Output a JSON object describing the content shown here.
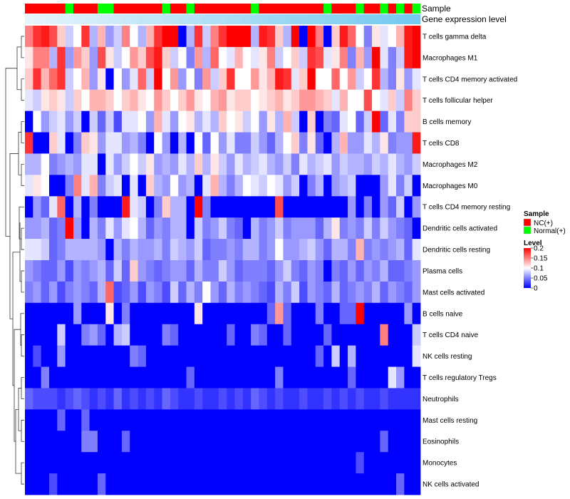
{
  "chart_data": {
    "type": "heatmap",
    "title": "",
    "rows": [
      "T cells gamma delta",
      "Macrophages M1",
      "T cells CD4 memory activated",
      "T cells follicular helper",
      "B cells memory",
      "T cells CD8",
      "Macrophages M2",
      "Macrophages M0",
      "T cells CD4 memory resting",
      "Dendritic cells activated",
      "Dendritic cells resting",
      "Plasma cells",
      "Mast cells activated",
      "B cells naive",
      "T cells CD4 naive",
      "NK cells resting",
      "T cells regulatory  Tregs",
      "Neutrophils",
      "Mast cells resting",
      "Eosinophils",
      "Monocytes",
      "NK cells activated"
    ],
    "column_groups": [
      "NC(+)",
      "NC(+)",
      "NC(+)",
      "NC(+)",
      "NC(+)",
      "Normal(+)",
      "NC(+)",
      "NC(+)",
      "NC(+)",
      "Normal(+)",
      "Normal(+)",
      "NC(+)",
      "NC(+)",
      "NC(+)",
      "NC(+)",
      "NC(+)",
      "NC(+)",
      "Normal(+)",
      "NC(+)",
      "NC(+)",
      "Normal(+)",
      "NC(+)",
      "NC(+)",
      "NC(+)",
      "NC(+)",
      "NC(+)",
      "NC(+)",
      "NC(+)",
      "Normal(+)",
      "NC(+)",
      "NC(+)",
      "NC(+)",
      "NC(+)",
      "NC(+)",
      "NC(+)",
      "NC(+)",
      "NC(+)",
      "Normal(+)",
      "NC(+)",
      "NC(+)",
      "NC(+)",
      "Normal(+)",
      "NC(+)",
      "NC(+)",
      "Normal(+)",
      "NC(+)",
      "Normal(+)",
      "NC(+)",
      "Normal(+)"
    ],
    "values": [
      [
        0.15,
        0.18,
        0.19,
        0.17,
        0.12,
        0.08,
        0.1,
        0.18,
        0.07,
        0.13,
        0.06,
        0.08,
        0.15,
        0.1,
        0.07,
        0.13,
        0.18,
        0.2,
        0.21,
        0.0,
        0.07,
        0.18,
        0.08,
        0.15,
        0.18,
        0.22,
        0.22,
        0.22,
        0.07,
        0.19,
        0.18,
        0.12,
        0.07,
        0.22,
        0.0,
        0.2,
        0.15,
        0.0,
        0.12,
        0.19,
        0.16,
        0.1,
        0.05,
        0.11,
        0.09,
        0.1,
        0.13,
        0.19,
        0.2
      ],
      [
        0.11,
        0.15,
        0.15,
        0.07,
        0.18,
        0.06,
        0.14,
        0.12,
        0.06,
        0.17,
        0.11,
        0.08,
        0.1,
        0.14,
        0.12,
        0.17,
        0.19,
        0.12,
        0.08,
        0.1,
        0.05,
        0.14,
        0.07,
        0.16,
        0.1,
        0.09,
        0.13,
        0.1,
        0.09,
        0.11,
        0.15,
        0.08,
        0.1,
        0.12,
        0.08,
        0.18,
        0.17,
        0.09,
        0.11,
        0.15,
        0.05,
        0.13,
        0.06,
        0.22,
        0.09,
        0.05,
        0.08,
        0.19,
        0.22
      ],
      [
        0.12,
        0.18,
        0.13,
        0.16,
        0.18,
        0.08,
        0.1,
        0.13,
        0.06,
        0.11,
        0.0,
        0.1,
        0.06,
        0.09,
        0.16,
        0.08,
        0.22,
        0.1,
        0.14,
        0.06,
        0.1,
        0.05,
        0.14,
        0.08,
        0.12,
        0.18,
        0.1,
        0.1,
        0.14,
        0.11,
        0.13,
        0.19,
        0.18,
        0.09,
        0.12,
        0.22,
        0.1,
        0.1,
        0.16,
        0.1,
        0.14,
        0.08,
        0.1,
        0.18,
        0.07,
        0.05,
        0.11,
        0.06,
        0.09
      ],
      [
        0.09,
        0.08,
        0.11,
        0.12,
        0.11,
        0.08,
        0.12,
        0.1,
        0.13,
        0.13,
        0.12,
        0.1,
        0.12,
        0.13,
        0.11,
        0.1,
        0.14,
        0.12,
        0.1,
        0.12,
        0.14,
        0.11,
        0.1,
        0.13,
        0.14,
        0.11,
        0.12,
        0.12,
        0.1,
        0.11,
        0.12,
        0.13,
        0.11,
        0.12,
        0.14,
        0.14,
        0.13,
        0.12,
        0.09,
        0.13,
        0.1,
        0.1,
        0.17,
        0.1,
        0.09,
        0.12,
        0.08,
        0.15,
        0.12
      ],
      [
        0.0,
        0.1,
        0.06,
        0.08,
        0.09,
        0.06,
        0.08,
        0.0,
        0.08,
        0.04,
        0.08,
        0.03,
        0.09,
        0.09,
        0.1,
        0.06,
        0.13,
        0.09,
        0.06,
        0.1,
        0.11,
        0.07,
        0.09,
        0.07,
        0.12,
        0.1,
        0.11,
        0.08,
        0.1,
        0.06,
        0.11,
        0.07,
        0.13,
        0.08,
        0.0,
        0.12,
        0.0,
        0.05,
        0.04,
        0.09,
        0.1,
        0.04,
        0.08,
        0.22,
        0.04,
        0.09,
        0.05,
        0.12,
        0.12
      ],
      [
        0.18,
        0.0,
        0.0,
        0.12,
        0.09,
        0.0,
        0.05,
        0.12,
        0.11,
        0.06,
        0.09,
        0.09,
        0.06,
        0.07,
        0.05,
        0.0,
        0.1,
        0.06,
        0.0,
        0.07,
        0.0,
        0.1,
        0.04,
        0.1,
        0.06,
        0.09,
        0.05,
        0.05,
        0.08,
        0.06,
        0.04,
        0.07,
        0.1,
        0.12,
        0.05,
        0.11,
        0.04,
        0.0,
        0.07,
        0.13,
        0.06,
        0.06,
        0.09,
        0.07,
        0.11,
        0.05,
        0.06,
        0.06,
        0.19
      ],
      [
        0.07,
        0.07,
        0.1,
        0.05,
        0.06,
        0.07,
        0.06,
        0.09,
        0.09,
        0.0,
        0.09,
        0.06,
        0.08,
        0.1,
        0.08,
        0.11,
        0.06,
        0.07,
        0.06,
        0.09,
        0.07,
        0.12,
        0.07,
        0.11,
        0.08,
        0.06,
        0.09,
        0.07,
        0.08,
        0.09,
        0.07,
        0.06,
        0.08,
        0.05,
        0.09,
        0.07,
        0.08,
        0.09,
        0.06,
        0.08,
        0.07,
        0.07,
        0.06,
        0.08,
        0.07,
        0.09,
        0.07,
        0.06,
        0.08
      ],
      [
        0.09,
        0.11,
        0.1,
        0.0,
        0.0,
        0.05,
        0.15,
        0.09,
        0.13,
        0.05,
        0.08,
        0.09,
        0.0,
        0.09,
        0.0,
        0.12,
        0.07,
        0.06,
        0.1,
        0.06,
        0.07,
        0.0,
        0.09,
        0.13,
        0.07,
        0.05,
        0.07,
        0.1,
        0.09,
        0.08,
        0.1,
        0.09,
        0.06,
        0.08,
        0.0,
        0.05,
        0.07,
        0.0,
        0.06,
        0.07,
        0.08,
        0.0,
        0.0,
        0.0,
        0.06,
        0.09,
        0.05,
        0.08,
        0.0
      ],
      [
        0.0,
        0.06,
        0.04,
        0.09,
        0.16,
        0.0,
        0.07,
        0.0,
        0.05,
        0.0,
        0.0,
        0.0,
        0.19,
        0.09,
        0.08,
        0.0,
        0.05,
        0.12,
        0.07,
        0.07,
        0.0,
        0.2,
        0.05,
        0.0,
        0.0,
        0.0,
        0.0,
        0.0,
        0.0,
        0.0,
        0.0,
        0.17,
        0.0,
        0.0,
        0.0,
        0.0,
        0.0,
        0.0,
        0.0,
        0.0,
        0.06,
        0.0,
        0.05,
        0.0,
        0.06,
        0.04,
        0.08,
        0.0,
        0.06
      ],
      [
        0.06,
        0.06,
        0.07,
        0.04,
        0.05,
        0.2,
        0.06,
        0.0,
        0.07,
        0.05,
        0.09,
        0.06,
        0.09,
        0.1,
        0.07,
        0.04,
        0.06,
        0.05,
        0.07,
        0.07,
        0.0,
        0.08,
        0.05,
        0.06,
        0.08,
        0.05,
        0.04,
        0.0,
        0.07,
        0.05,
        0.06,
        0.08,
        0.05,
        0.06,
        0.06,
        0.06,
        0.04,
        0.07,
        0.11,
        0.05,
        0.06,
        0.05,
        0.08,
        0.05,
        0.08,
        0.06,
        0.05,
        0.04,
        0.0
      ],
      [
        0.09,
        0.09,
        0.08,
        0.04,
        0.05,
        0.07,
        0.07,
        0.07,
        0.07,
        0.06,
        0.0,
        0.07,
        0.05,
        0.07,
        0.06,
        0.06,
        0.07,
        0.05,
        0.08,
        0.07,
        0.06,
        0.08,
        0.04,
        0.05,
        0.05,
        0.06,
        0.05,
        0.07,
        0.07,
        0.05,
        0.06,
        0.1,
        0.06,
        0.06,
        0.07,
        0.08,
        0.06,
        0.04,
        0.07,
        0.07,
        0.05,
        0.13,
        0.05,
        0.06,
        0.05,
        0.06,
        0.07,
        0.04,
        0.09
      ],
      [
        0.06,
        0.05,
        0.04,
        0.04,
        0.06,
        0.03,
        0.06,
        0.05,
        0.06,
        0.07,
        0.04,
        0.08,
        0.04,
        0.12,
        0.06,
        0.05,
        0.04,
        0.05,
        0.06,
        0.06,
        0.04,
        0.07,
        0.05,
        0.05,
        0.08,
        0.06,
        0.04,
        0.05,
        0.05,
        0.05,
        0.04,
        0.06,
        0.08,
        0.05,
        0.04,
        0.06,
        0.05,
        0.0,
        0.05,
        0.04,
        0.06,
        0.04,
        0.06,
        0.05,
        0.07,
        0.04,
        0.04,
        0.05,
        0.06
      ],
      [
        0.05,
        0.06,
        0.04,
        0.06,
        0.03,
        0.05,
        0.06,
        0.05,
        0.04,
        0.07,
        0.16,
        0.03,
        0.04,
        0.06,
        0.03,
        0.06,
        0.05,
        0.03,
        0.08,
        0.04,
        0.07,
        0.05,
        0.1,
        0.06,
        0.04,
        0.07,
        0.05,
        0.06,
        0.05,
        0.04,
        0.03,
        0.07,
        0.05,
        0.08,
        0.03,
        0.06,
        0.05,
        0.04,
        0.07,
        0.04,
        0.05,
        0.06,
        0.05,
        0.07,
        0.04,
        0.06,
        0.05,
        0.04,
        0.06
      ],
      [
        0.0,
        0.0,
        0.0,
        0.0,
        0.0,
        0.0,
        0.06,
        0.0,
        0.0,
        0.0,
        0.11,
        0.0,
        0.05,
        0.0,
        0.0,
        0.0,
        0.0,
        0.0,
        0.0,
        0.0,
        0.0,
        0.11,
        0.0,
        0.0,
        0.0,
        0.0,
        0.0,
        0.0,
        0.0,
        0.0,
        0.04,
        0.14,
        0.04,
        0.0,
        0.0,
        0.0,
        0.05,
        0.0,
        0.0,
        0.04,
        0.04,
        0.2,
        0.0,
        0.0,
        0.0,
        0.0,
        0.0,
        0.06,
        0.0
      ],
      [
        0.0,
        0.0,
        0.0,
        0.0,
        0.08,
        0.0,
        0.0,
        0.05,
        0.06,
        0.04,
        0.0,
        0.07,
        0.08,
        0.0,
        0.0,
        0.0,
        0.0,
        0.05,
        0.04,
        0.0,
        0.0,
        0.0,
        0.0,
        0.0,
        0.0,
        0.04,
        0.0,
        0.0,
        0.05,
        0.04,
        0.0,
        0.0,
        0.04,
        0.0,
        0.0,
        0.0,
        0.0,
        0.04,
        0.0,
        0.0,
        0.0,
        0.0,
        0.0,
        0.0,
        0.15,
        0.0,
        0.0,
        0.0,
        0.08
      ],
      [
        0.0,
        0.03,
        0.0,
        0.0,
        0.06,
        0.0,
        0.0,
        0.0,
        0.0,
        0.0,
        0.0,
        0.0,
        0.0,
        0.05,
        0.04,
        0.0,
        0.0,
        0.0,
        0.0,
        0.0,
        0.0,
        0.0,
        0.0,
        0.0,
        0.0,
        0.0,
        0.0,
        0.0,
        0.0,
        0.0,
        0.0,
        0.0,
        0.0,
        0.0,
        0.0,
        0.0,
        0.04,
        0.0,
        0.08,
        0.0,
        0.07,
        0.0,
        0.0,
        0.0,
        0.0,
        0.0,
        0.0,
        0.0,
        0.09
      ],
      [
        0.0,
        0.0,
        0.05,
        0.0,
        0.0,
        0.0,
        0.0,
        0.0,
        0.0,
        0.0,
        0.0,
        0.0,
        0.0,
        0.0,
        0.0,
        0.0,
        0.0,
        0.0,
        0.0,
        0.0,
        0.04,
        0.0,
        0.0,
        0.0,
        0.0,
        0.0,
        0.0,
        0.0,
        0.0,
        0.0,
        0.0,
        0.05,
        0.0,
        0.0,
        0.0,
        0.0,
        0.0,
        0.0,
        0.0,
        0.0,
        0.04,
        0.0,
        0.0,
        0.0,
        0.0,
        0.09,
        0.06,
        0.0,
        0.0
      ],
      [
        0.04,
        0.03,
        0.03,
        0.03,
        0.02,
        0.03,
        0.04,
        0.03,
        0.02,
        0.03,
        0.02,
        0.04,
        0.02,
        0.03,
        0.02,
        0.03,
        0.02,
        0.04,
        0.03,
        0.02,
        0.02,
        0.03,
        0.02,
        0.02,
        0.03,
        0.02,
        0.03,
        0.02,
        0.04,
        0.03,
        0.02,
        0.03,
        0.02,
        0.02,
        0.03,
        0.02,
        0.02,
        0.03,
        0.02,
        0.03,
        0.02,
        0.03,
        0.02,
        0.02,
        0.03,
        0.02,
        0.02,
        0.02,
        0.02
      ],
      [
        0.0,
        0.0,
        0.0,
        0.0,
        0.04,
        0.0,
        0.0,
        0.04,
        0.0,
        0.0,
        0.0,
        0.0,
        0.0,
        0.0,
        0.0,
        0.0,
        0.0,
        0.0,
        0.0,
        0.0,
        0.0,
        0.0,
        0.0,
        0.0,
        0.0,
        0.0,
        0.0,
        0.0,
        0.0,
        0.0,
        0.0,
        0.0,
        0.0,
        0.0,
        0.0,
        0.0,
        0.0,
        0.0,
        0.0,
        0.0,
        0.0,
        0.0,
        0.0,
        0.0,
        0.0,
        0.0,
        0.0,
        0.0,
        0.0
      ],
      [
        0.0,
        0.0,
        0.0,
        0.0,
        0.0,
        0.0,
        0.0,
        0.05,
        0.05,
        0.0,
        0.0,
        0.0,
        0.04,
        0.0,
        0.0,
        0.0,
        0.0,
        0.0,
        0.0,
        0.0,
        0.0,
        0.0,
        0.0,
        0.0,
        0.0,
        0.0,
        0.0,
        0.0,
        0.0,
        0.0,
        0.0,
        0.0,
        0.0,
        0.0,
        0.0,
        0.0,
        0.0,
        0.0,
        0.0,
        0.0,
        0.0,
        0.0,
        0.0,
        0.0,
        0.04,
        0.0,
        0.0,
        0.0,
        0.0
      ],
      [
        0.0,
        0.0,
        0.0,
        0.0,
        0.0,
        0.0,
        0.0,
        0.0,
        0.0,
        0.0,
        0.0,
        0.0,
        0.0,
        0.0,
        0.0,
        0.0,
        0.0,
        0.0,
        0.0,
        0.0,
        0.0,
        0.0,
        0.0,
        0.0,
        0.0,
        0.0,
        0.0,
        0.0,
        0.0,
        0.0,
        0.0,
        0.0,
        0.0,
        0.0,
        0.0,
        0.0,
        0.0,
        0.0,
        0.0,
        0.0,
        0.0,
        0.03,
        0.0,
        0.0,
        0.0,
        0.0,
        0.0,
        0.0,
        0.0
      ],
      [
        0.0,
        0.0,
        0.0,
        0.03,
        0.0,
        0.0,
        0.0,
        0.0,
        0.0,
        0.04,
        0.0,
        0.0,
        0.0,
        0.0,
        0.0,
        0.0,
        0.0,
        0.0,
        0.0,
        0.0,
        0.0,
        0.0,
        0.0,
        0.0,
        0.0,
        0.0,
        0.0,
        0.0,
        0.0,
        0.0,
        0.0,
        0.0,
        0.0,
        0.0,
        0.0,
        0.0,
        0.0,
        0.0,
        0.0,
        0.0,
        0.0,
        0.0,
        0.0,
        0.0,
        0.0,
        0.0,
        0.04,
        0.0,
        0.0
      ]
    ],
    "annotations": {
      "sample_label": "Sample",
      "gene_label": "Gene expression level"
    },
    "legend": {
      "sample_title": "Sample",
      "sample_entries": [
        {
          "label": "NC(+)",
          "color": "#ff0000"
        },
        {
          "label": "Normal(+)",
          "color": "#00ff00"
        }
      ],
      "level_title": "Level",
      "level_ticks": [
        "0.2",
        "0.15",
        "0.1",
        "0.05",
        "0"
      ],
      "level_range": [
        0,
        0.2
      ]
    },
    "colors": {
      "low": "#0000ff",
      "mid": "#ffffff",
      "high": "#ff0000",
      "gene_start": "#e6f4fb",
      "gene_end": "#73c9ef"
    }
  }
}
